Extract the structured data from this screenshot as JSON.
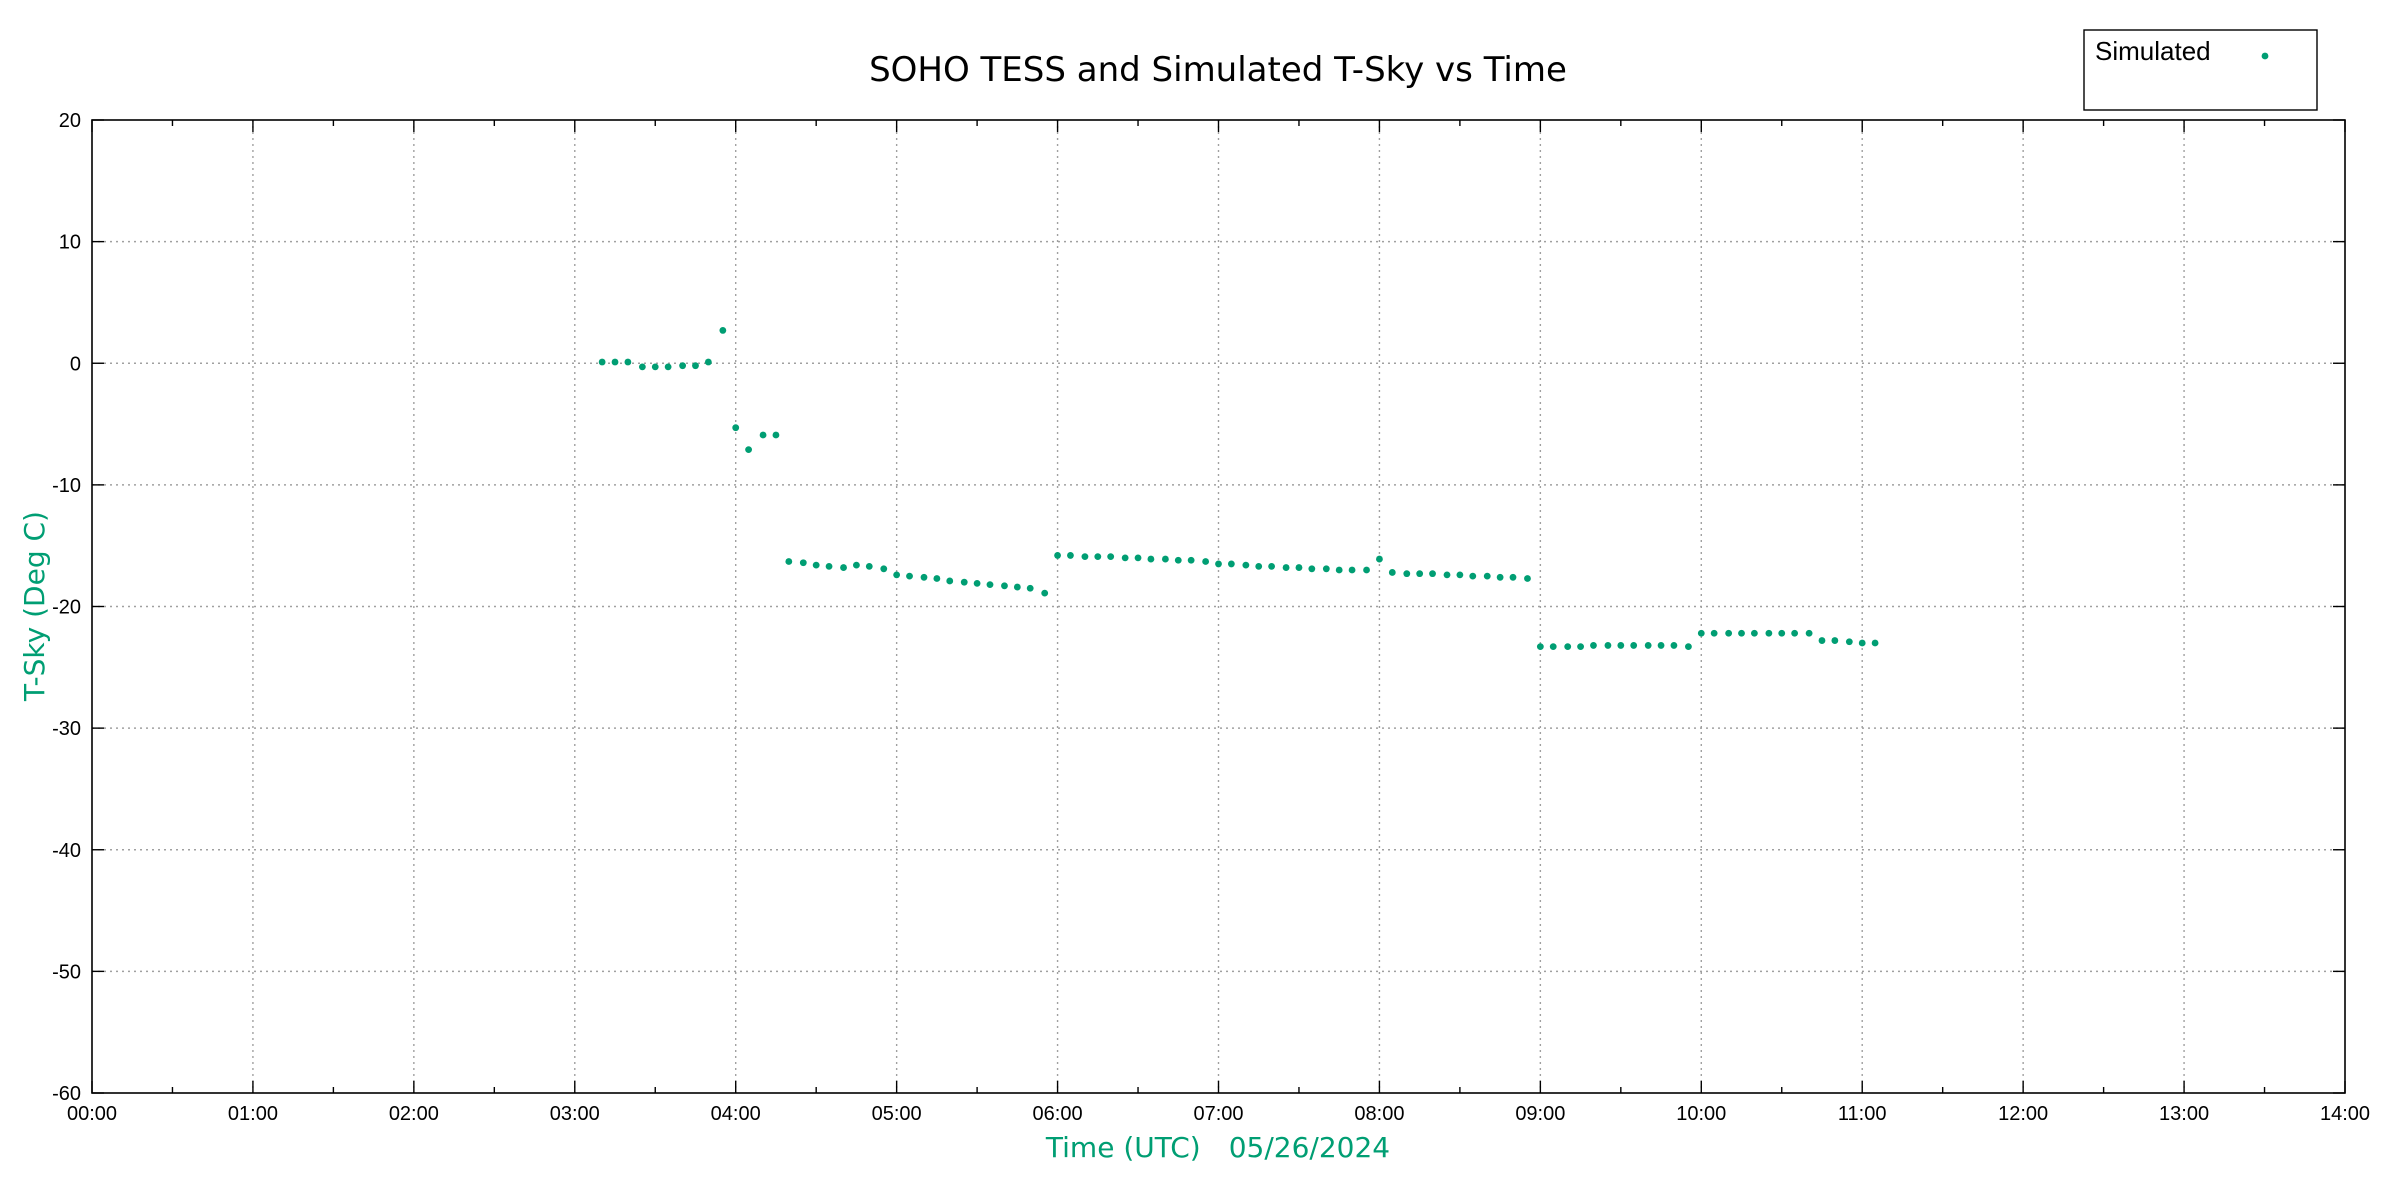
{
  "chart_data": {
    "type": "scatter",
    "title": "SOHO TESS and Simulated T-Sky vs Time",
    "xlabel": "Time (UTC)",
    "xlabel_date": "05/26/2024",
    "ylabel": "T-Sky (Deg C)",
    "x_unit": "hours (UTC)",
    "xlim": [
      0,
      14
    ],
    "ylim": [
      -60,
      20
    ],
    "x_tick_labels": [
      "00:00",
      "01:00",
      "02:00",
      "03:00",
      "04:00",
      "05:00",
      "06:00",
      "07:00",
      "08:00",
      "09:00",
      "10:00",
      "11:00",
      "12:00",
      "13:00",
      "14:00"
    ],
    "y_ticks": [
      20,
      10,
      0,
      -10,
      -20,
      -30,
      -40,
      -50,
      -60
    ],
    "y_tick_labels": [
      "20",
      "10",
      "0",
      "-10",
      "-20",
      "-30",
      "-40",
      "-50",
      "-60"
    ],
    "grid": true,
    "legend": {
      "placement": "top-right",
      "entries": [
        "Simulated"
      ]
    },
    "series": [
      {
        "name": "Simulated",
        "color": "#009e73",
        "points": [
          {
            "x": 3.17,
            "y": 0.1
          },
          {
            "x": 3.25,
            "y": 0.1
          },
          {
            "x": 3.33,
            "y": 0.1
          },
          {
            "x": 3.42,
            "y": -0.3
          },
          {
            "x": 3.5,
            "y": -0.3
          },
          {
            "x": 3.58,
            "y": -0.3
          },
          {
            "x": 3.67,
            "y": -0.2
          },
          {
            "x": 3.75,
            "y": -0.2
          },
          {
            "x": 3.83,
            "y": 0.1
          },
          {
            "x": 3.92,
            "y": 2.7
          },
          {
            "x": 4.0,
            "y": -5.3
          },
          {
            "x": 4.08,
            "y": -7.1
          },
          {
            "x": 4.17,
            "y": -5.9
          },
          {
            "x": 4.25,
            "y": -5.9
          },
          {
            "x": 4.33,
            "y": -16.3
          },
          {
            "x": 4.42,
            "y": -16.4
          },
          {
            "x": 4.5,
            "y": -16.6
          },
          {
            "x": 4.58,
            "y": -16.7
          },
          {
            "x": 4.67,
            "y": -16.8
          },
          {
            "x": 4.75,
            "y": -16.6
          },
          {
            "x": 4.83,
            "y": -16.7
          },
          {
            "x": 4.92,
            "y": -16.9
          },
          {
            "x": 5.0,
            "y": -17.4
          },
          {
            "x": 5.08,
            "y": -17.5
          },
          {
            "x": 5.17,
            "y": -17.6
          },
          {
            "x": 5.25,
            "y": -17.7
          },
          {
            "x": 5.33,
            "y": -17.9
          },
          {
            "x": 5.42,
            "y": -18.0
          },
          {
            "x": 5.5,
            "y": -18.1
          },
          {
            "x": 5.58,
            "y": -18.2
          },
          {
            "x": 5.67,
            "y": -18.3
          },
          {
            "x": 5.75,
            "y": -18.4
          },
          {
            "x": 5.83,
            "y": -18.5
          },
          {
            "x": 5.92,
            "y": -18.9
          },
          {
            "x": 6.0,
            "y": -15.8
          },
          {
            "x": 6.08,
            "y": -15.8
          },
          {
            "x": 6.17,
            "y": -15.9
          },
          {
            "x": 6.25,
            "y": -15.9
          },
          {
            "x": 6.33,
            "y": -15.9
          },
          {
            "x": 6.42,
            "y": -16.0
          },
          {
            "x": 6.5,
            "y": -16.0
          },
          {
            "x": 6.58,
            "y": -16.1
          },
          {
            "x": 6.67,
            "y": -16.1
          },
          {
            "x": 6.75,
            "y": -16.2
          },
          {
            "x": 6.83,
            "y": -16.2
          },
          {
            "x": 6.92,
            "y": -16.3
          },
          {
            "x": 7.0,
            "y": -16.5
          },
          {
            "x": 7.08,
            "y": -16.5
          },
          {
            "x": 7.17,
            "y": -16.6
          },
          {
            "x": 7.25,
            "y": -16.7
          },
          {
            "x": 7.33,
            "y": -16.7
          },
          {
            "x": 7.42,
            "y": -16.8
          },
          {
            "x": 7.5,
            "y": -16.8
          },
          {
            "x": 7.58,
            "y": -16.9
          },
          {
            "x": 7.67,
            "y": -16.9
          },
          {
            "x": 7.75,
            "y": -17.0
          },
          {
            "x": 7.83,
            "y": -17.0
          },
          {
            "x": 7.92,
            "y": -17.0
          },
          {
            "x": 8.0,
            "y": -16.1
          },
          {
            "x": 8.08,
            "y": -17.2
          },
          {
            "x": 8.17,
            "y": -17.3
          },
          {
            "x": 8.25,
            "y": -17.3
          },
          {
            "x": 8.33,
            "y": -17.3
          },
          {
            "x": 8.42,
            "y": -17.4
          },
          {
            "x": 8.5,
            "y": -17.4
          },
          {
            "x": 8.58,
            "y": -17.5
          },
          {
            "x": 8.67,
            "y": -17.5
          },
          {
            "x": 8.75,
            "y": -17.6
          },
          {
            "x": 8.83,
            "y": -17.6
          },
          {
            "x": 8.92,
            "y": -17.7
          },
          {
            "x": 9.0,
            "y": -23.3
          },
          {
            "x": 9.08,
            "y": -23.3
          },
          {
            "x": 9.17,
            "y": -23.3
          },
          {
            "x": 9.25,
            "y": -23.3
          },
          {
            "x": 9.33,
            "y": -23.2
          },
          {
            "x": 9.42,
            "y": -23.2
          },
          {
            "x": 9.5,
            "y": -23.2
          },
          {
            "x": 9.58,
            "y": -23.2
          },
          {
            "x": 9.67,
            "y": -23.2
          },
          {
            "x": 9.75,
            "y": -23.2
          },
          {
            "x": 9.83,
            "y": -23.2
          },
          {
            "x": 9.92,
            "y": -23.3
          },
          {
            "x": 10.0,
            "y": -22.2
          },
          {
            "x": 10.08,
            "y": -22.2
          },
          {
            "x": 10.17,
            "y": -22.2
          },
          {
            "x": 10.25,
            "y": -22.2
          },
          {
            "x": 10.33,
            "y": -22.2
          },
          {
            "x": 10.42,
            "y": -22.2
          },
          {
            "x": 10.5,
            "y": -22.2
          },
          {
            "x": 10.58,
            "y": -22.2
          },
          {
            "x": 10.67,
            "y": -22.2
          },
          {
            "x": 10.75,
            "y": -22.8
          },
          {
            "x": 10.83,
            "y": -22.8
          },
          {
            "x": 10.92,
            "y": -22.9
          },
          {
            "x": 11.0,
            "y": -23.0
          },
          {
            "x": 11.08,
            "y": -23.0
          }
        ]
      }
    ]
  }
}
